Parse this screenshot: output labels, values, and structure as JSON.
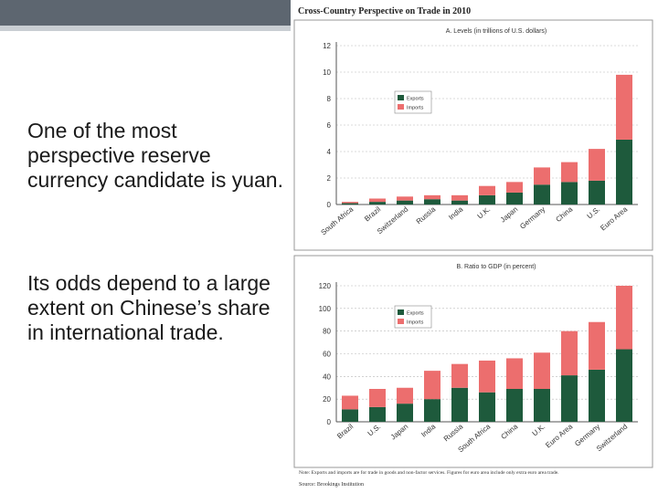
{
  "slide": {
    "paragraph_1": "One of the most perspective reserve currency candidate is yuan.",
    "paragraph_2": "Its odds depend to a large extent on Chinese’s share in international trade."
  },
  "figure": {
    "title": "Cross-Country Perspective on Trade in 2010",
    "note": "Note: Exports and imports are for trade in goods and non-factor services. Figures for euro area include only extra euro area trade.",
    "source": "Source: Brookings Institution"
  },
  "colors": {
    "exports": "#1e5a3c",
    "imports": "#ec6e6e",
    "grid": "#b8b8b8",
    "frame": "#999999"
  },
  "chart_data": [
    {
      "type": "bar",
      "stacked": true,
      "title": "A. Levels (in trillions of U.S. dollars)",
      "categories": [
        "South Africa",
        "Brazil",
        "Switzerland",
        "Russia",
        "India",
        "U.K.",
        "Japan",
        "Germany",
        "China",
        "U.S.",
        "Euro Area"
      ],
      "series": [
        {
          "name": "Exports",
          "values": [
            0.1,
            0.2,
            0.3,
            0.4,
            0.3,
            0.7,
            0.9,
            1.5,
            1.7,
            1.8,
            4.9
          ]
        },
        {
          "name": "Imports",
          "values": [
            0.1,
            0.25,
            0.3,
            0.3,
            0.4,
            0.7,
            0.8,
            1.3,
            1.5,
            2.4,
            4.9
          ]
        }
      ],
      "yticks": [
        0,
        2,
        4,
        6,
        8,
        10,
        12
      ],
      "ylim": [
        0,
        12
      ],
      "legend": "top-left",
      "grid": true
    },
    {
      "type": "bar",
      "stacked": true,
      "title": "B. Ratio to GDP (in percent)",
      "categories": [
        "Brazil",
        "U.S.",
        "Japan",
        "India",
        "Russia",
        "South Africa",
        "China",
        "U.K.",
        "Euro Area",
        "Germany",
        "Switzerland"
      ],
      "series": [
        {
          "name": "Exports",
          "values": [
            11,
            13,
            16,
            20,
            30,
            26,
            29,
            29,
            41,
            46,
            64
          ]
        },
        {
          "name": "Imports",
          "values": [
            12,
            16,
            14,
            25,
            21,
            28,
            27,
            32,
            39,
            42,
            56
          ]
        }
      ],
      "yticks": [
        0,
        20,
        40,
        60,
        80,
        100,
        120
      ],
      "ylim": [
        0,
        120
      ],
      "legend": "top-left",
      "grid": true
    }
  ]
}
